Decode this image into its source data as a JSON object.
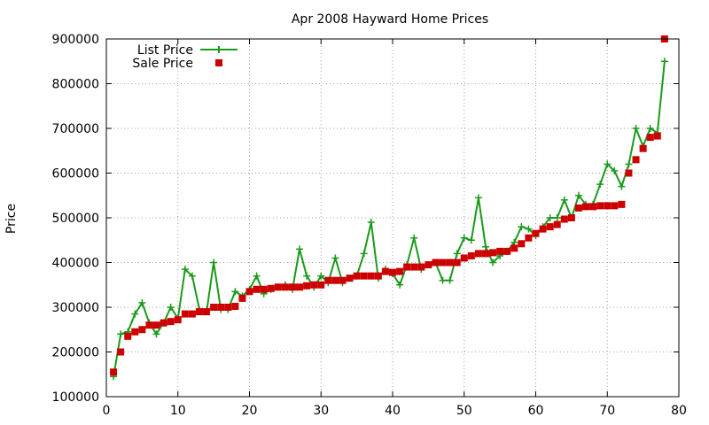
{
  "chart_data": {
    "type": "line",
    "title": "Apr 2008 Hayward Home Prices",
    "xlabel": "",
    "ylabel": "Price",
    "xlim": [
      0,
      80
    ],
    "ylim": [
      100000,
      900000
    ],
    "xticks": [
      0,
      10,
      20,
      30,
      40,
      50,
      60,
      70,
      80
    ],
    "yticks": [
      100000,
      200000,
      300000,
      400000,
      500000,
      600000,
      700000,
      800000,
      900000
    ],
    "grid": true,
    "legend_position": "top-left",
    "colors": {
      "list": "#1a9a1a",
      "sale": "#cc0000"
    },
    "x": [
      1,
      2,
      3,
      4,
      5,
      6,
      7,
      8,
      9,
      10,
      11,
      12,
      13,
      14,
      15,
      16,
      17,
      18,
      19,
      20,
      21,
      22,
      23,
      24,
      25,
      26,
      27,
      28,
      29,
      30,
      31,
      32,
      33,
      34,
      35,
      36,
      37,
      38,
      39,
      40,
      41,
      42,
      43,
      44,
      45,
      46,
      47,
      48,
      49,
      50,
      51,
      52,
      53,
      54,
      55,
      56,
      57,
      58,
      59,
      60,
      61,
      62,
      63,
      64,
      65,
      66,
      67,
      68,
      69,
      70,
      71,
      72,
      73,
      74,
      75,
      76,
      77,
      78
    ],
    "series": [
      {
        "name": "List Price",
        "style": "linespoints",
        "values": [
          145000,
          240000,
          245000,
          285000,
          310000,
          265000,
          240000,
          265000,
          300000,
          275000,
          385000,
          370000,
          295000,
          290000,
          400000,
          295000,
          295000,
          335000,
          325000,
          340000,
          370000,
          330000,
          340000,
          345000,
          350000,
          340000,
          430000,
          370000,
          345000,
          370000,
          355000,
          410000,
          355000,
          365000,
          370000,
          420000,
          490000,
          365000,
          385000,
          375000,
          350000,
          395000,
          455000,
          385000,
          395000,
          400000,
          360000,
          360000,
          420000,
          455000,
          450000,
          545000,
          435000,
          400000,
          415000,
          425000,
          445000,
          480000,
          475000,
          460000,
          480000,
          500000,
          500000,
          540000,
          500000,
          550000,
          530000,
          530000,
          575000,
          620000,
          605000,
          570000,
          620000,
          700000,
          660000,
          700000,
          690000,
          850000
        ]
      },
      {
        "name": "Sale Price",
        "style": "points",
        "values": [
          155000,
          200000,
          235000,
          245000,
          250000,
          260000,
          260000,
          265000,
          268000,
          272000,
          285000,
          285000,
          290000,
          290000,
          300000,
          300000,
          300000,
          302000,
          320000,
          335000,
          340000,
          340000,
          342000,
          345000,
          345000,
          345000,
          345000,
          348000,
          350000,
          350000,
          360000,
          360000,
          360000,
          365000,
          370000,
          370000,
          370000,
          370000,
          380000,
          378000,
          380000,
          390000,
          390000,
          390000,
          395000,
          400000,
          400000,
          400000,
          400000,
          410000,
          415000,
          420000,
          420000,
          422000,
          425000,
          425000,
          432000,
          442000,
          455000,
          465000,
          475000,
          480000,
          485000,
          497000,
          500000,
          522000,
          525000,
          525000,
          527000,
          527000,
          527000,
          530000,
          600000,
          630000,
          655000,
          680000,
          683000,
          900000
        ]
      }
    ]
  }
}
